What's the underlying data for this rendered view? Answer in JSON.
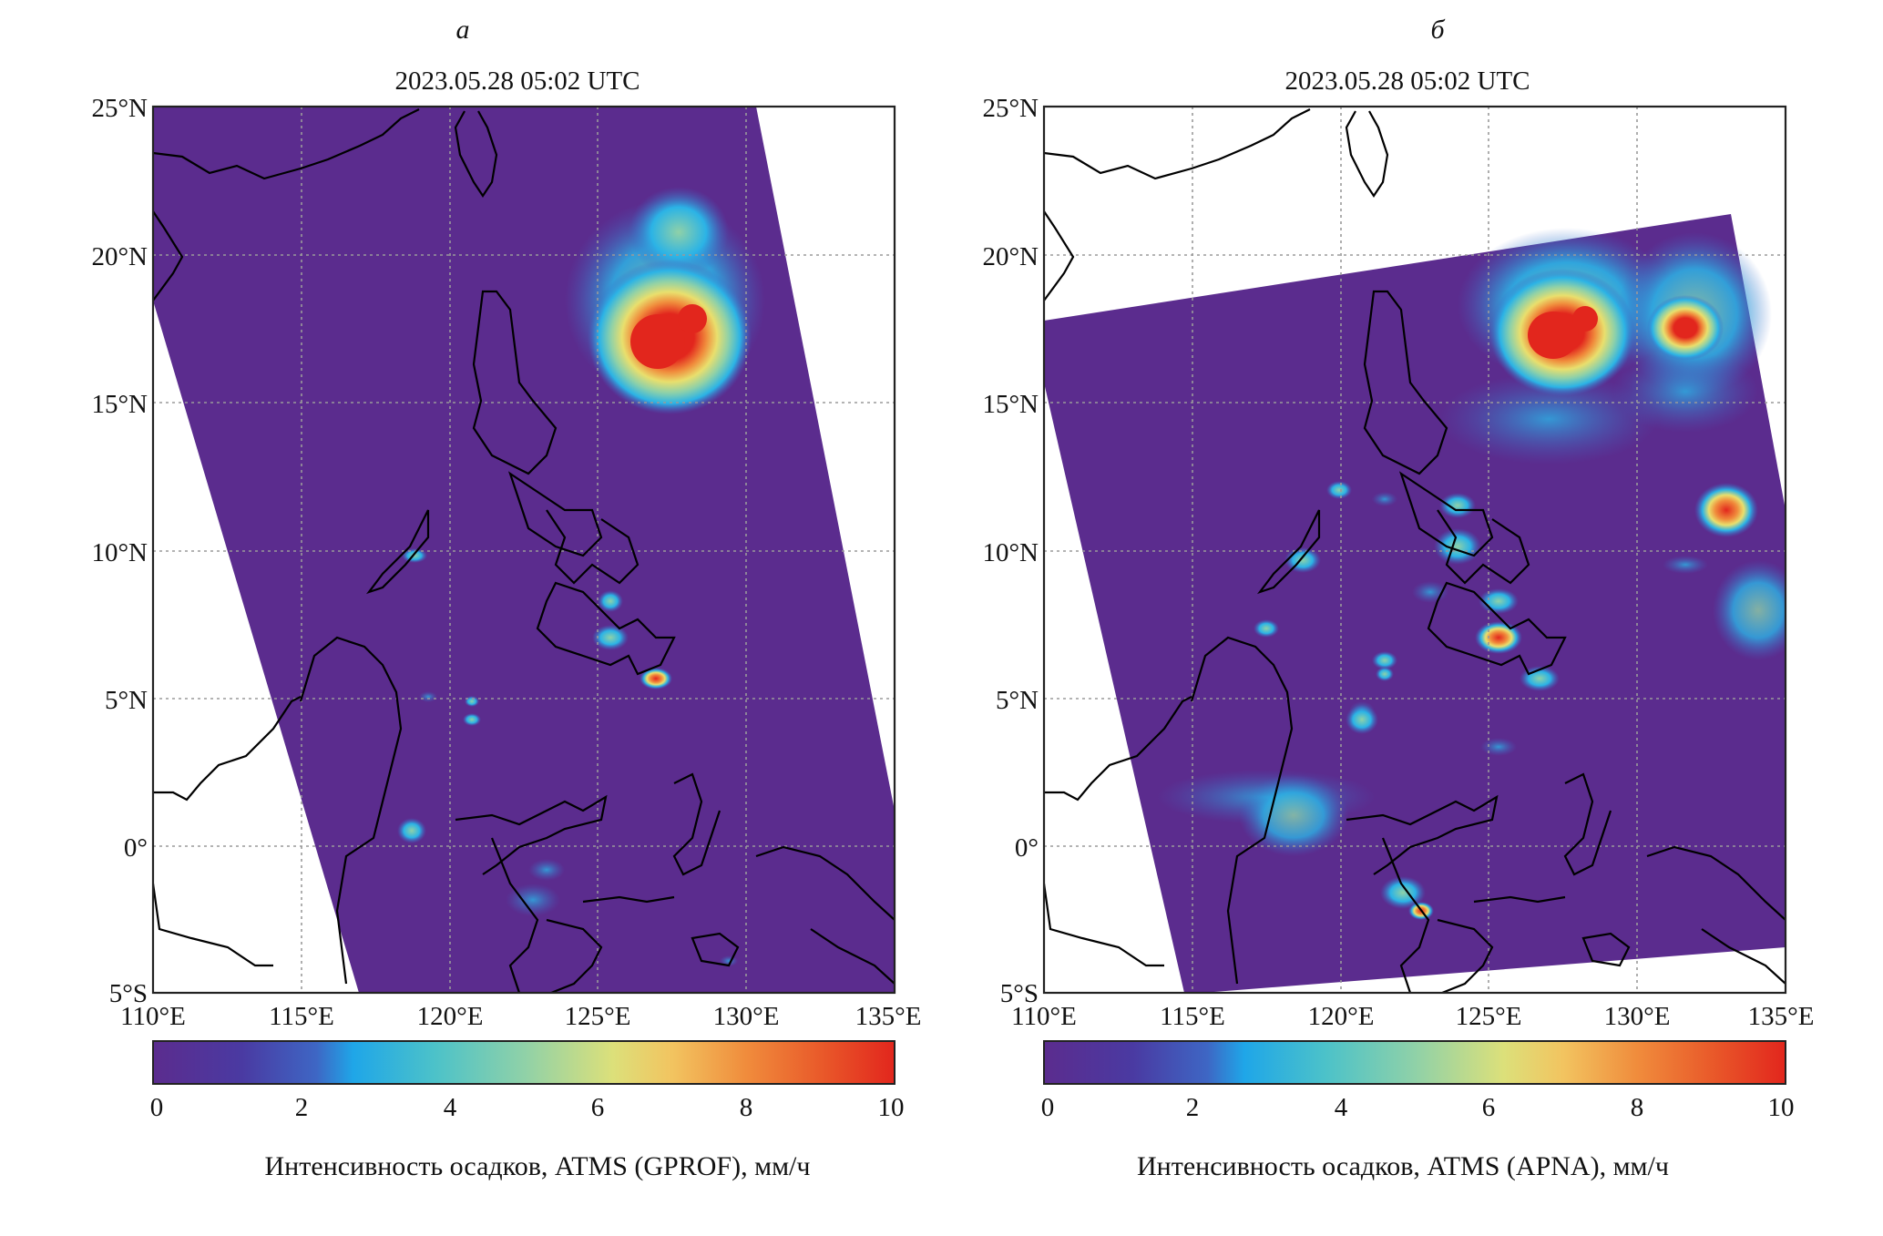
{
  "panels": [
    {
      "letter": "а",
      "title": "2023.05.28 05:02 UTC",
      "lat_labels": [
        "25°N",
        "20°N",
        "15°N",
        "10°N",
        "5°N",
        "0°",
        "5°S"
      ],
      "lon_labels": [
        "110°E",
        "115°E",
        "120°E",
        "125°E",
        "130°E",
        "135°E"
      ],
      "colorbar_ticks": [
        "0",
        "2",
        "4",
        "6",
        "8",
        "10"
      ],
      "colorbar_label": "Интенсивность осадков, ATMS (GPROF), мм/ч"
    },
    {
      "letter": "б",
      "title": "2023.05.28 05:02 UTC",
      "lat_labels": [
        "25°N",
        "20°N",
        "15°N",
        "10°N",
        "5°N",
        "0°",
        "5°S"
      ],
      "lon_labels": [
        "110°E",
        "115°E",
        "120°E",
        "125°E",
        "130°E",
        "135°E"
      ],
      "colorbar_ticks": [
        "0",
        "2",
        "4",
        "6",
        "8",
        "10"
      ],
      "colorbar_label": "Интенсивность осадков, ATMS (APNA), мм/ч"
    }
  ],
  "map_extent": {
    "lon": [
      110,
      135
    ],
    "lat": [
      -5,
      25
    ]
  },
  "colorbar_range": [
    0,
    10
  ],
  "colors": {
    "background": "#5b2c8e",
    "low": "#3e66c4",
    "mid": "#2bb3e6",
    "midhigh": "#8fd1a8",
    "high": "#e9df6d",
    "veryhigh": "#f08c3c",
    "max": "#e2261d",
    "coast": "#000000",
    "grid": "#9a9a9a"
  }
}
